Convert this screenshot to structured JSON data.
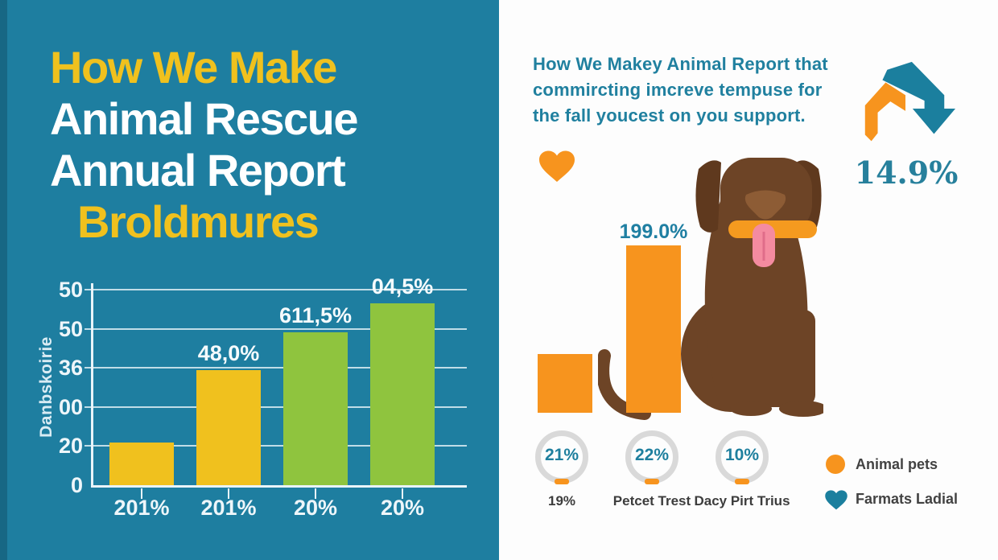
{
  "colors": {
    "teal_bg": "#1e7ea0",
    "yellow": "#f0c11e",
    "green": "#8fc43e",
    "orange": "#f7941e",
    "teal_text": "#20809f",
    "heart_teal": "#1b7f9e",
    "gray_ring": "#d9d9d9",
    "dog_brown": "#6d4426",
    "white": "#ffffff"
  },
  "left_panel": {
    "title_lines": [
      {
        "text": "How We Make",
        "color": "#f0c11e",
        "indent": false
      },
      {
        "text": "Animal Rescue",
        "color": "#ffffff",
        "indent": false
      },
      {
        "text": "Annual Report",
        "color": "#ffffff",
        "indent": false
      },
      {
        "text": "Broldmures",
        "color": "#f0c11e",
        "indent": true
      }
    ]
  },
  "chart_data": {
    "type": "bar",
    "title": "",
    "xlabel": "",
    "ylabel": "Danbskoirie",
    "y_tick_labels": [
      "50",
      "50",
      "36",
      "00",
      "20",
      "0"
    ],
    "ylim": [
      0,
      50
    ],
    "grid": "on",
    "categories": [
      "201%",
      "201%",
      "20%",
      "20%"
    ],
    "values": [
      22,
      59,
      78,
      93
    ],
    "values_unit": "percent of plot height (labels on image are garbled)",
    "data_labels": [
      "",
      "48,0%",
      "611,5%",
      "04,5%"
    ],
    "bar_colors": [
      "#f0c11e",
      "#f0c11e",
      "#8fc43e",
      "#8fc43e"
    ]
  },
  "right_panel": {
    "intro_lines": [
      "How We Makey Animal Report that",
      "commircting imcreve tempuse for",
      "the fall youcest on you support."
    ],
    "arrow_stat": "14.9%",
    "mini_chart": {
      "type": "bar",
      "color": "#f7941e",
      "bars": [
        {
          "height_pct": 35,
          "label": ""
        },
        {
          "height_pct": 100,
          "label": "199.0%"
        }
      ]
    },
    "donuts": [
      {
        "value": "21%",
        "label": "19%"
      },
      {
        "value": "22%",
        "label": "Petcet Trest"
      },
      {
        "value": "10%",
        "label": "Dacy Pirt Trius"
      }
    ],
    "legend": [
      {
        "swatch": "circle",
        "color": "#f7941e",
        "label": "Animal pets"
      },
      {
        "swatch": "heart",
        "color": "#1b7f9e",
        "label": "Farmats Ladial"
      }
    ]
  }
}
